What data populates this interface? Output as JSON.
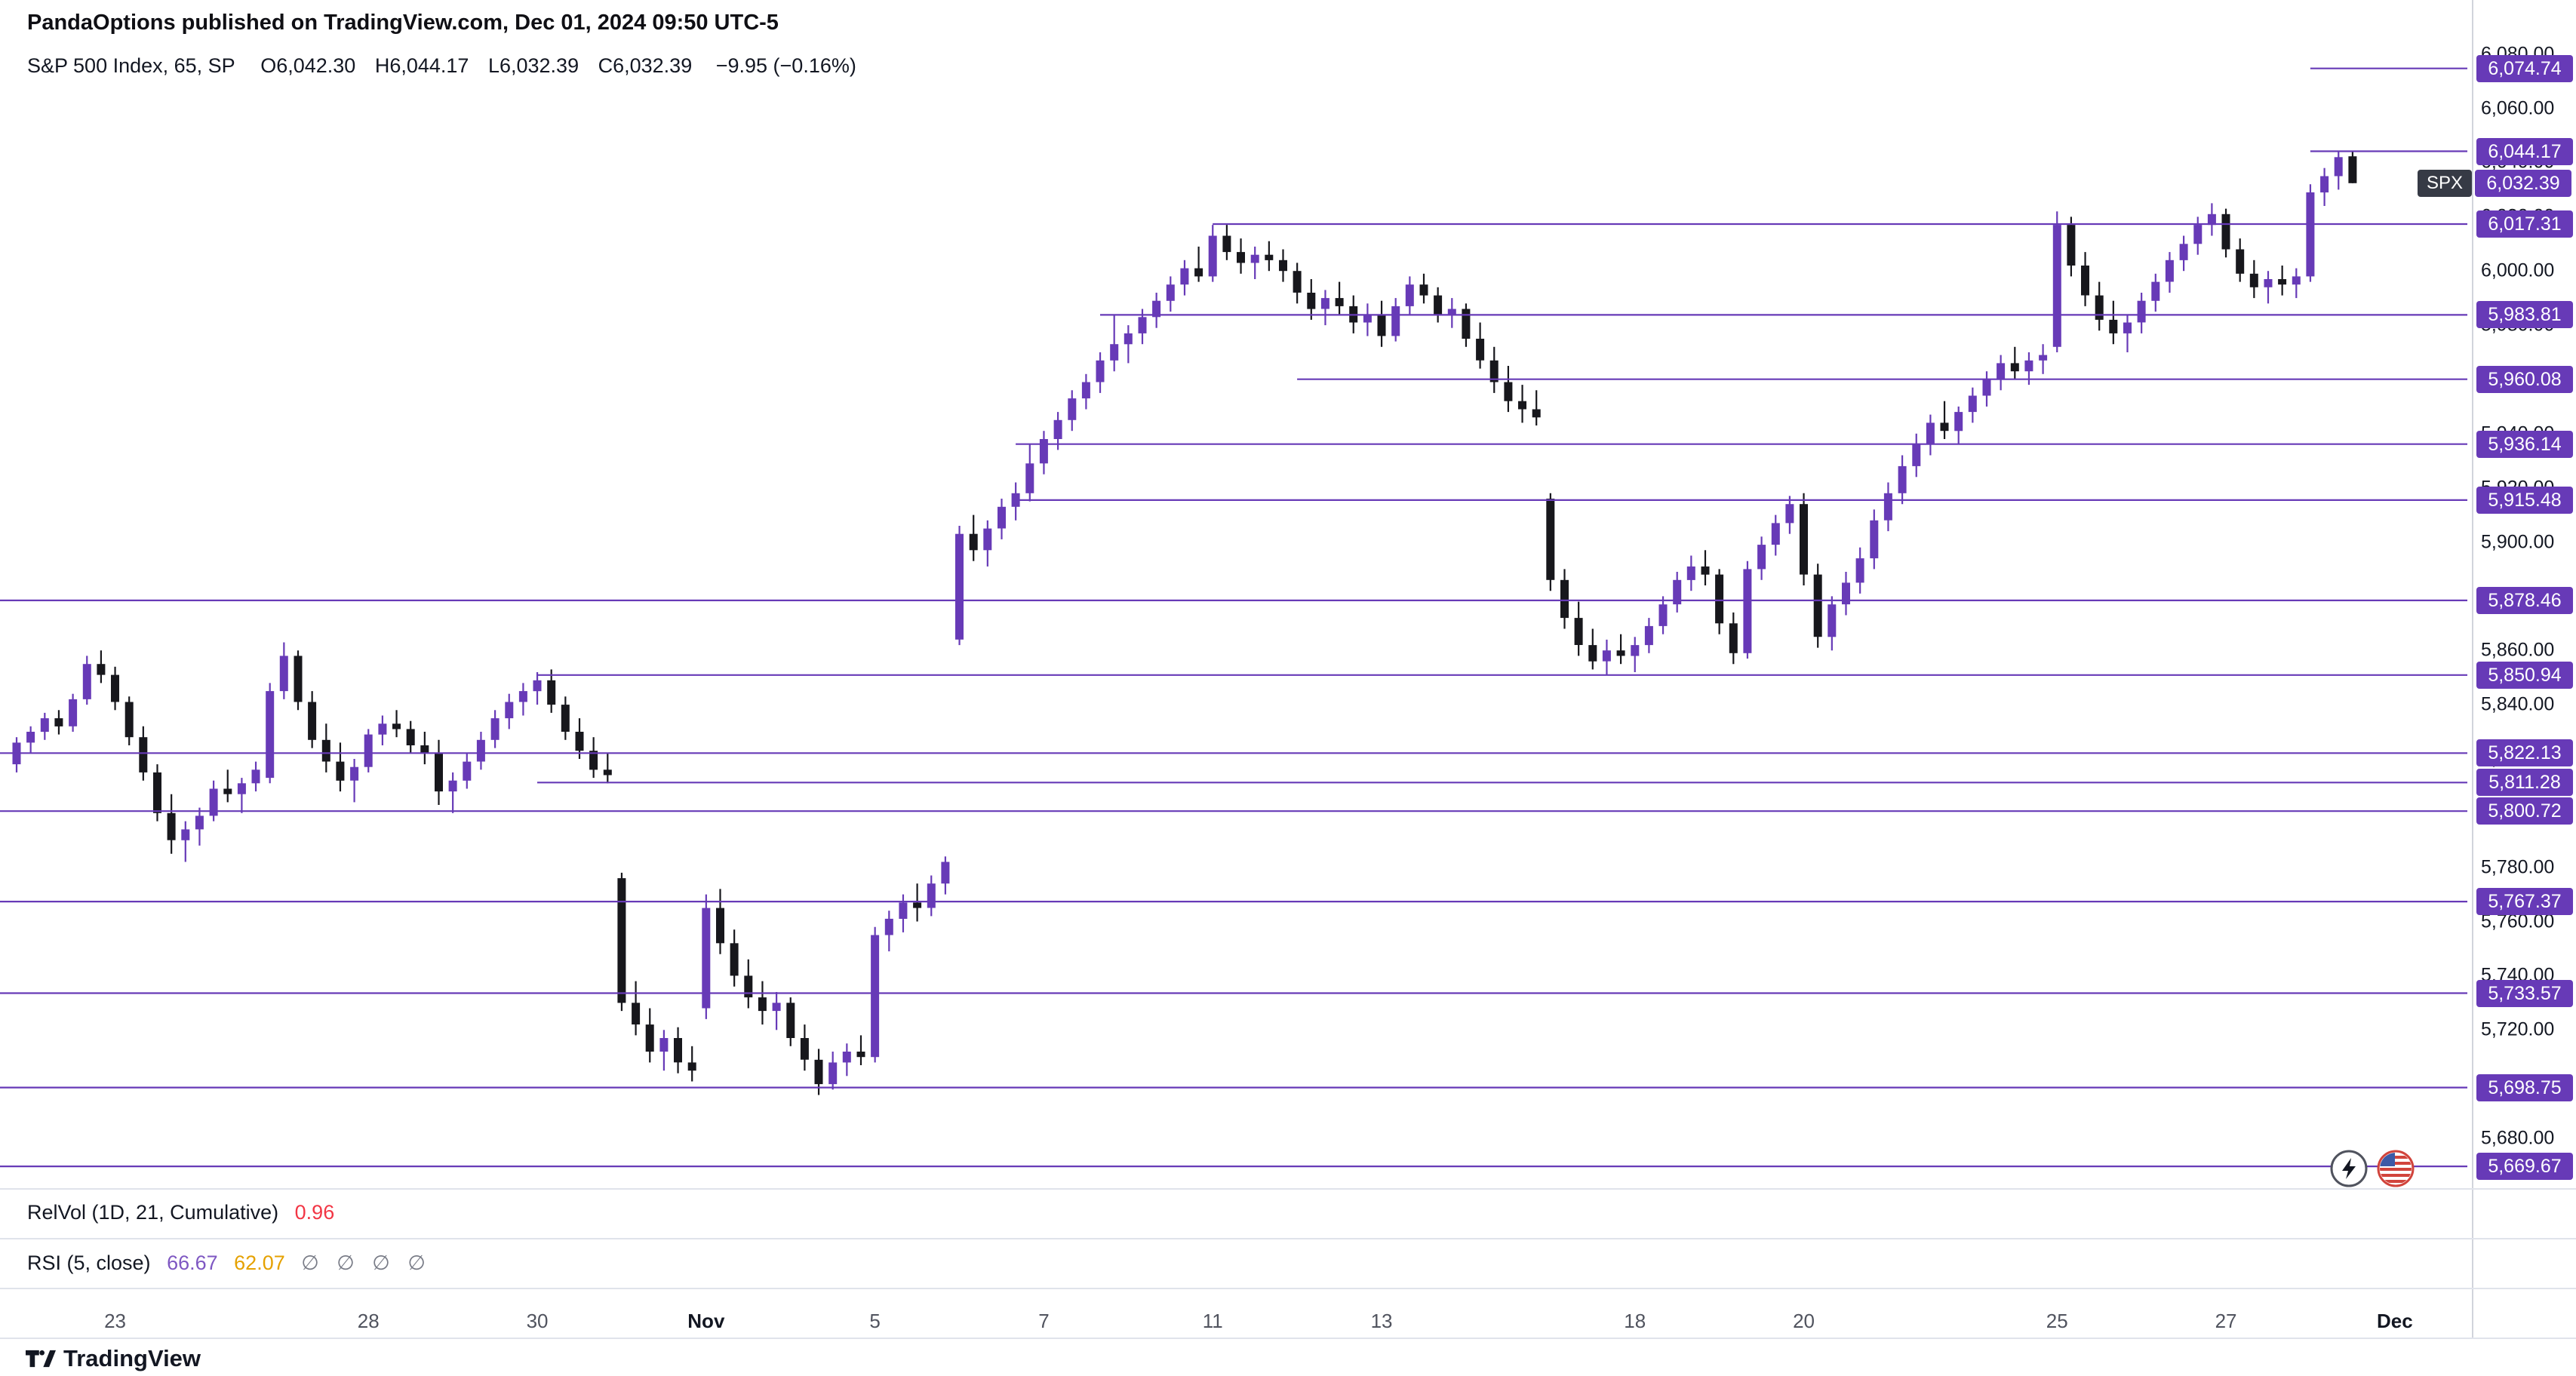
{
  "header": {
    "published_line": "PandaOptions published on TradingView.com, Dec 01, 2024 09:50 UTC-5"
  },
  "legend": {
    "title": "S&P 500 Index, 65, SP",
    "ohlc": [
      "O6,042.30",
      "H6,044.17",
      "L6,032.39",
      "C6,032.39"
    ],
    "change": "−9.95 (−0.16%)"
  },
  "indicators": {
    "relvol": {
      "label": "RelVol (1D, 21, Cumulative)",
      "value": "0.96",
      "value_color": "#f23645"
    },
    "rsi": {
      "label": "RSI (5, close)",
      "value1": "66.67",
      "value1_color": "#7e57c2",
      "value2": "62.07",
      "value2_color": "#e5a100",
      "empties": "∅ ∅ ∅ ∅",
      "empties_color": "#787b86"
    }
  },
  "footer": {
    "brand": "TradingView"
  },
  "chart_data": {
    "type": "candlestick",
    "symbol": "SPX",
    "title": "S&P 500 Index, 65 minute",
    "up_color": "#673ab7",
    "down_color": "#17171c",
    "level_color": "#673ab7",
    "axis_range": [
      5660,
      6090
    ],
    "last_price_badge": {
      "symbol": "SPX",
      "label": "6,032.39",
      "price": 6032.39
    },
    "y_ticks": [
      {
        "v": 6080,
        "label": "6,080.00"
      },
      {
        "v": 6060,
        "label": "6,060.00"
      },
      {
        "v": 6040,
        "label": "6,040.00"
      },
      {
        "v": 6020,
        "label": "6,020.00"
      },
      {
        "v": 6000,
        "label": "6,000.00"
      },
      {
        "v": 5980,
        "label": "5,980.00"
      },
      {
        "v": 5960,
        "label": "5,960.00"
      },
      {
        "v": 5940,
        "label": "5,940.00"
      },
      {
        "v": 5920,
        "label": "5,920.00"
      },
      {
        "v": 5900,
        "label": "5,900.00"
      },
      {
        "v": 5880,
        "label": "5,880.00"
      },
      {
        "v": 5860,
        "label": "5,860.00"
      },
      {
        "v": 5840,
        "label": "5,840.00"
      },
      {
        "v": 5820,
        "label": "5,820.00"
      },
      {
        "v": 5800,
        "label": "5,800.00"
      },
      {
        "v": 5780,
        "label": "5,780.00"
      },
      {
        "v": 5760,
        "label": "5,760.00"
      },
      {
        "v": 5740,
        "label": "5,740.00"
      },
      {
        "v": 5720,
        "label": "5,720.00"
      },
      {
        "v": 5700,
        "label": "5,700.00"
      },
      {
        "v": 5680,
        "label": "5,680.00"
      }
    ],
    "levels": [
      {
        "price": 6074.74,
        "label": "6,074.74",
        "start": 163
      },
      {
        "price": 6044.17,
        "label": "6,044.17",
        "start": 163
      },
      {
        "price": 6017.31,
        "label": "6,017.31",
        "start": 85
      },
      {
        "price": 5983.81,
        "label": "5,983.81",
        "start": 77
      },
      {
        "price": 5960.08,
        "label": "5,960.08",
        "start": 91
      },
      {
        "price": 5936.14,
        "label": "5,936.14",
        "start": 71
      },
      {
        "price": 5915.48,
        "label": "5,915.48",
        "start": 71
      },
      {
        "price": 5878.46,
        "label": "5,878.46",
        "start": -1
      },
      {
        "price": 5850.94,
        "label": "5,850.94",
        "start": 37
      },
      {
        "price": 5822.13,
        "label": "5,822.13",
        "start": -1
      },
      {
        "price": 5811.28,
        "label": "5,811.28",
        "start": 37
      },
      {
        "price": 5800.72,
        "label": "5,800.72",
        "start": -1
      },
      {
        "price": 5767.37,
        "label": "5,767.37",
        "start": -1
      },
      {
        "price": 5733.57,
        "label": "5,733.57",
        "start": -1
      },
      {
        "price": 5698.75,
        "label": "5,698.75",
        "start": -1
      },
      {
        "price": 5669.67,
        "label": "5,669.67",
        "start": -1
      }
    ],
    "x_labels": [
      {
        "text": "23",
        "index": 7,
        "bold": false
      },
      {
        "text": "28",
        "index": 25,
        "bold": false
      },
      {
        "text": "30",
        "index": 37,
        "bold": false
      },
      {
        "text": "Nov",
        "index": 49,
        "bold": true
      },
      {
        "text": "5",
        "index": 61,
        "bold": false
      },
      {
        "text": "7",
        "index": 73,
        "bold": false
      },
      {
        "text": "11",
        "index": 85,
        "bold": false
      },
      {
        "text": "13",
        "index": 97,
        "bold": false
      },
      {
        "text": "18",
        "index": 115,
        "bold": false
      },
      {
        "text": "20",
        "index": 127,
        "bold": false
      },
      {
        "text": "25",
        "index": 145,
        "bold": false
      },
      {
        "text": "27",
        "index": 157,
        "bold": false
      },
      {
        "text": "Dec",
        "index": 169,
        "bold": true
      }
    ],
    "candles": [
      [
        5818,
        5828,
        5815,
        5826
      ],
      [
        5826,
        5832,
        5822,
        5830
      ],
      [
        5830,
        5837,
        5827,
        5835
      ],
      [
        5835,
        5838,
        5829,
        5832
      ],
      [
        5832,
        5844,
        5830,
        5842
      ],
      [
        5842,
        5858,
        5840,
        5855
      ],
      [
        5855,
        5860,
        5848,
        5851
      ],
      [
        5851,
        5854,
        5838,
        5841
      ],
      [
        5841,
        5843,
        5825,
        5828
      ],
      [
        5828,
        5832,
        5812,
        5815
      ],
      [
        5815,
        5818,
        5797,
        5800
      ],
      [
        5800,
        5807,
        5785,
        5790
      ],
      [
        5790,
        5797,
        5782,
        5794
      ],
      [
        5794,
        5802,
        5788,
        5799
      ],
      [
        5799,
        5812,
        5797,
        5809
      ],
      [
        5809,
        5816,
        5804,
        5807
      ],
      [
        5807,
        5813,
        5800,
        5811
      ],
      [
        5811,
        5819,
        5808,
        5816
      ],
      [
        5813,
        5848,
        5811,
        5845
      ],
      [
        5845,
        5863,
        5842,
        5858
      ],
      [
        5858,
        5860,
        5838,
        5841
      ],
      [
        5841,
        5845,
        5824,
        5827
      ],
      [
        5827,
        5833,
        5815,
        5819
      ],
      [
        5819,
        5826,
        5808,
        5812
      ],
      [
        5812,
        5820,
        5804,
        5817
      ],
      [
        5817,
        5831,
        5815,
        5829
      ],
      [
        5829,
        5836,
        5825,
        5833
      ],
      [
        5833,
        5838,
        5828,
        5831
      ],
      [
        5831,
        5834,
        5822,
        5825
      ],
      [
        5825,
        5830,
        5818,
        5822
      ],
      [
        5822,
        5827,
        5803,
        5808
      ],
      [
        5808,
        5815,
        5800,
        5812
      ],
      [
        5812,
        5822,
        5809,
        5819
      ],
      [
        5819,
        5830,
        5816,
        5827
      ],
      [
        5827,
        5838,
        5824,
        5835
      ],
      [
        5835,
        5844,
        5831,
        5841
      ],
      [
        5841,
        5848,
        5836,
        5845
      ],
      [
        5845,
        5852,
        5840,
        5849
      ],
      [
        5849,
        5853,
        5837,
        5840
      ],
      [
        5840,
        5843,
        5827,
        5830
      ],
      [
        5830,
        5835,
        5820,
        5823
      ],
      [
        5823,
        5828,
        5813,
        5816
      ],
      [
        5816,
        5822,
        5811,
        5814
      ],
      [
        5776,
        5778,
        5727,
        5730
      ],
      [
        5730,
        5738,
        5718,
        5722
      ],
      [
        5722,
        5728,
        5708,
        5712
      ],
      [
        5712,
        5720,
        5705,
        5717
      ],
      [
        5717,
        5721,
        5704,
        5708
      ],
      [
        5708,
        5714,
        5701,
        5705
      ],
      [
        5728,
        5770,
        5724,
        5765
      ],
      [
        5765,
        5772,
        5748,
        5752
      ],
      [
        5752,
        5757,
        5736,
        5740
      ],
      [
        5740,
        5746,
        5728,
        5732
      ],
      [
        5732,
        5738,
        5722,
        5727
      ],
      [
        5727,
        5734,
        5720,
        5730
      ],
      [
        5730,
        5732,
        5714,
        5717
      ],
      [
        5717,
        5722,
        5705,
        5709
      ],
      [
        5709,
        5713,
        5696,
        5700
      ],
      [
        5700,
        5712,
        5698,
        5708
      ],
      [
        5708,
        5715,
        5703,
        5712
      ],
      [
        5712,
        5718,
        5707,
        5710
      ],
      [
        5710,
        5758,
        5708,
        5755
      ],
      [
        5755,
        5764,
        5749,
        5761
      ],
      [
        5761,
        5770,
        5756,
        5767
      ],
      [
        5767,
        5774,
        5760,
        5765
      ],
      [
        5765,
        5777,
        5762,
        5774
      ],
      [
        5774,
        5784,
        5770,
        5782
      ],
      [
        5864,
        5906,
        5862,
        5903
      ],
      [
        5903,
        5910,
        5893,
        5897
      ],
      [
        5897,
        5908,
        5891,
        5905
      ],
      [
        5905,
        5916,
        5901,
        5913
      ],
      [
        5913,
        5922,
        5908,
        5918
      ],
      [
        5918,
        5936,
        5915,
        5929
      ],
      [
        5929,
        5941,
        5925,
        5938
      ],
      [
        5938,
        5948,
        5934,
        5945
      ],
      [
        5945,
        5956,
        5941,
        5953
      ],
      [
        5953,
        5962,
        5949,
        5959
      ],
      [
        5959,
        5970,
        5955,
        5967
      ],
      [
        5967,
        5984,
        5963,
        5973
      ],
      [
        5973,
        5980,
        5966,
        5977
      ],
      [
        5977,
        5986,
        5973,
        5983
      ],
      [
        5983,
        5992,
        5979,
        5989
      ],
      [
        5989,
        5998,
        5985,
        5995
      ],
      [
        5995,
        6004,
        5991,
        6001
      ],
      [
        6001,
        6009,
        5996,
        5998
      ],
      [
        5998,
        6017,
        5996,
        6013
      ],
      [
        6013,
        6017,
        6004,
        6007
      ],
      [
        6007,
        6012,
        5999,
        6003
      ],
      [
        6003,
        6009,
        5997,
        6006
      ],
      [
        6006,
        6011,
        6000,
        6004
      ],
      [
        6004,
        6008,
        5996,
        6000
      ],
      [
        6000,
        6003,
        5988,
        5992
      ],
      [
        5992,
        5997,
        5982,
        5986
      ],
      [
        5986,
        5993,
        5980,
        5990
      ],
      [
        5990,
        5996,
        5984,
        5987
      ],
      [
        5987,
        5991,
        5977,
        5981
      ],
      [
        5981,
        5988,
        5976,
        5984
      ],
      [
        5984,
        5989,
        5972,
        5976
      ],
      [
        5976,
        5990,
        5974,
        5987
      ],
      [
        5987,
        5998,
        5984,
        5995
      ],
      [
        5995,
        5999,
        5988,
        5991
      ],
      [
        5991,
        5994,
        5981,
        5984
      ],
      [
        5984,
        5990,
        5979,
        5986
      ],
      [
        5986,
        5988,
        5972,
        5975
      ],
      [
        5975,
        5981,
        5964,
        5967
      ],
      [
        5967,
        5972,
        5955,
        5959
      ],
      [
        5959,
        5965,
        5948,
        5952
      ],
      [
        5952,
        5958,
        5944,
        5949
      ],
      [
        5949,
        5956,
        5943,
        5946
      ],
      [
        5916,
        5918,
        5882,
        5886
      ],
      [
        5886,
        5890,
        5868,
        5872
      ],
      [
        5872,
        5878,
        5858,
        5862
      ],
      [
        5862,
        5868,
        5853,
        5856
      ],
      [
        5856,
        5864,
        5851,
        5860
      ],
      [
        5860,
        5866,
        5855,
        5858
      ],
      [
        5858,
        5865,
        5852,
        5862
      ],
      [
        5862,
        5872,
        5859,
        5869
      ],
      [
        5869,
        5880,
        5866,
        5877
      ],
      [
        5877,
        5889,
        5874,
        5886
      ],
      [
        5886,
        5895,
        5882,
        5891
      ],
      [
        5891,
        5897,
        5884,
        5888
      ],
      [
        5888,
        5890,
        5866,
        5870
      ],
      [
        5870,
        5874,
        5855,
        5859
      ],
      [
        5859,
        5893,
        5857,
        5890
      ],
      [
        5890,
        5902,
        5886,
        5899
      ],
      [
        5899,
        5910,
        5895,
        5907
      ],
      [
        5907,
        5917,
        5903,
        5914
      ],
      [
        5914,
        5918,
        5884,
        5888
      ],
      [
        5888,
        5892,
        5861,
        5865
      ],
      [
        5865,
        5880,
        5860,
        5877
      ],
      [
        5877,
        5889,
        5873,
        5885
      ],
      [
        5885,
        5898,
        5881,
        5894
      ],
      [
        5894,
        5912,
        5890,
        5908
      ],
      [
        5908,
        5922,
        5904,
        5918
      ],
      [
        5918,
        5932,
        5914,
        5928
      ],
      [
        5928,
        5940,
        5924,
        5936
      ],
      [
        5936,
        5947,
        5932,
        5944
      ],
      [
        5944,
        5952,
        5938,
        5941
      ],
      [
        5941,
        5950,
        5936,
        5948
      ],
      [
        5948,
        5957,
        5944,
        5954
      ],
      [
        5954,
        5963,
        5950,
        5960
      ],
      [
        5960,
        5969,
        5956,
        5966
      ],
      [
        5966,
        5972,
        5960,
        5963
      ],
      [
        5963,
        5970,
        5958,
        5967
      ],
      [
        5967,
        5973,
        5962,
        5969
      ],
      [
        5972,
        6022,
        5970,
        6017
      ],
      [
        6017,
        6020,
        5998,
        6002
      ],
      [
        6002,
        6007,
        5987,
        5991
      ],
      [
        5991,
        5996,
        5978,
        5982
      ],
      [
        5982,
        5989,
        5973,
        5977
      ],
      [
        5977,
        5984,
        5970,
        5981
      ],
      [
        5981,
        5992,
        5977,
        5989
      ],
      [
        5989,
        5999,
        5985,
        5996
      ],
      [
        5996,
        6007,
        5992,
        6004
      ],
      [
        6004,
        6013,
        6000,
        6010
      ],
      [
        6010,
        6020,
        6006,
        6017
      ],
      [
        6017,
        6025,
        6013,
        6021
      ],
      [
        6021,
        6023,
        6005,
        6008
      ],
      [
        6008,
        6012,
        5996,
        5999
      ],
      [
        5999,
        6004,
        5990,
        5994
      ],
      [
        5994,
        6000,
        5988,
        5997
      ],
      [
        5997,
        6002,
        5991,
        5995
      ],
      [
        5995,
        6001,
        5990,
        5998
      ],
      [
        5998,
        6032,
        5996,
        6029
      ],
      [
        6029,
        6038,
        6024,
        6035
      ],
      [
        6035,
        6044,
        6030,
        6042
      ],
      [
        6042.3,
        6044.17,
        6032.39,
        6032.39
      ]
    ]
  }
}
